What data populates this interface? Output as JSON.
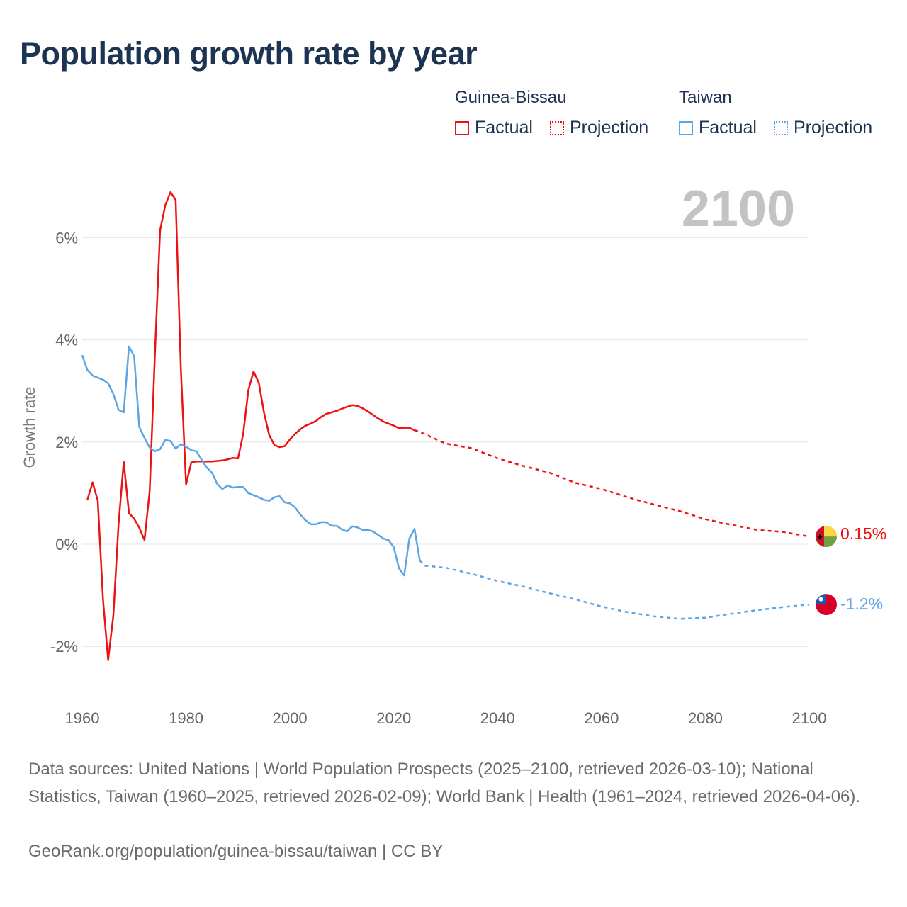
{
  "title": "Population growth rate by year",
  "legend": {
    "groups": [
      {
        "country": "Guinea-Bissau",
        "factual": "Factual",
        "projection": "Projection",
        "color": "#ee1111"
      },
      {
        "country": "Taiwan",
        "factual": "Factual",
        "projection": "Projection",
        "color": "#5ba4e6"
      }
    ]
  },
  "current_year": "2100",
  "end_labels": {
    "guinea_bissau": "0.15%",
    "taiwan": "-1.2%"
  },
  "footer": {
    "sources": "Data sources: United Nations | World Population Prospects (2025–2100, retrieved 2026-03-10); National Statistics, Taiwan (1960–2025, retrieved 2026-02-09); World Bank | Health (1961–2024, retrieved 2026-04-06).",
    "credit": "GeoRank.org/population/guinea-bissau/taiwan | CC BY"
  },
  "chart_data": {
    "type": "line",
    "title": "Population growth rate by year",
    "xlabel": "",
    "ylabel": "Growth rate",
    "xlim": [
      1960,
      2100
    ],
    "ylim": [
      -2.9,
      7.0
    ],
    "x_ticks": [
      1960,
      1980,
      2000,
      2020,
      2040,
      2060,
      2080,
      2100
    ],
    "x_tick_labels": [
      "1960",
      "1980",
      "2000",
      "2020",
      "2040",
      "2060",
      "2080",
      "2100"
    ],
    "y_ticks": [
      6,
      4,
      2,
      0,
      -2
    ],
    "y_tick_labels": [
      "6%",
      "4%",
      "2%",
      "0%",
      "-2%"
    ],
    "grid": true,
    "legend_position": "top-right",
    "series": [
      {
        "name": "Guinea-Bissau Factual",
        "color": "#ee1111",
        "style": "solid",
        "x": [
          1961,
          1962,
          1963,
          1964,
          1965,
          1966,
          1967,
          1968,
          1969,
          1970,
          1971,
          1972,
          1973,
          1974,
          1975,
          1976,
          1977,
          1978,
          1979,
          1980,
          1981,
          1982,
          1983,
          1984,
          1985,
          1986,
          1987,
          1988,
          1989,
          1990,
          1991,
          1992,
          1993,
          1994,
          1995,
          1996,
          1997,
          1998,
          1999,
          2000,
          2001,
          2002,
          2003,
          2004,
          2005,
          2006,
          2007,
          2008,
          2009,
          2010,
          2011,
          2012,
          2013,
          2014,
          2015,
          2016,
          2017,
          2018,
          2019,
          2020,
          2021,
          2022,
          2023,
          2024
        ],
        "y": [
          0.87,
          1.21,
          0.85,
          -1.07,
          -2.27,
          -1.39,
          0.39,
          1.61,
          0.61,
          0.5,
          0.32,
          0.08,
          1.05,
          3.72,
          6.14,
          6.64,
          6.89,
          6.74,
          3.44,
          1.17,
          1.6,
          1.62,
          1.62,
          1.62,
          1.62,
          1.63,
          1.64,
          1.66,
          1.69,
          1.68,
          2.16,
          3.02,
          3.38,
          3.16,
          2.58,
          2.14,
          1.94,
          1.9,
          1.92,
          2.05,
          2.16,
          2.25,
          2.32,
          2.36,
          2.41,
          2.49,
          2.55,
          2.58,
          2.61,
          2.65,
          2.69,
          2.72,
          2.71,
          2.66,
          2.6,
          2.53,
          2.46,
          2.4,
          2.36,
          2.32,
          2.27,
          2.28,
          2.28,
          2.23
        ]
      },
      {
        "name": "Guinea-Bissau Projection",
        "color": "#ee1111",
        "style": "dotted",
        "x": [
          2024,
          2025,
          2030,
          2035,
          2040,
          2045,
          2050,
          2055,
          2060,
          2065,
          2070,
          2075,
          2080,
          2085,
          2090,
          2095,
          2100
        ],
        "y": [
          2.23,
          2.2,
          1.97,
          1.88,
          1.68,
          1.53,
          1.4,
          1.2,
          1.08,
          0.92,
          0.78,
          0.65,
          0.49,
          0.38,
          0.28,
          0.24,
          0.15
        ]
      },
      {
        "name": "Taiwan Factual",
        "color": "#5ba4e6",
        "style": "solid",
        "x": [
          1960,
          1961,
          1962,
          1963,
          1964,
          1965,
          1966,
          1967,
          1968,
          1969,
          1970,
          1971,
          1972,
          1973,
          1974,
          1975,
          1976,
          1977,
          1978,
          1979,
          1980,
          1981,
          1982,
          1983,
          1984,
          1985,
          1986,
          1987,
          1988,
          1989,
          1990,
          1991,
          1992,
          1993,
          1994,
          1995,
          1996,
          1997,
          1998,
          1999,
          2000,
          2001,
          2002,
          2003,
          2004,
          2005,
          2006,
          2007,
          2008,
          2009,
          2010,
          2011,
          2012,
          2013,
          2014,
          2015,
          2016,
          2017,
          2018,
          2019,
          2020,
          2021,
          2022,
          2023,
          2024,
          2025
        ],
        "y": [
          3.7,
          3.41,
          3.3,
          3.26,
          3.22,
          3.15,
          2.94,
          2.63,
          2.58,
          3.87,
          3.68,
          2.29,
          2.08,
          1.89,
          1.82,
          1.86,
          2.04,
          2.02,
          1.87,
          1.96,
          1.91,
          1.84,
          1.82,
          1.65,
          1.5,
          1.4,
          1.18,
          1.08,
          1.15,
          1.11,
          1.12,
          1.12,
          1.0,
          0.96,
          0.92,
          0.87,
          0.85,
          0.92,
          0.94,
          0.82,
          0.8,
          0.72,
          0.58,
          0.47,
          0.39,
          0.39,
          0.43,
          0.43,
          0.36,
          0.36,
          0.29,
          0.25,
          0.35,
          0.33,
          0.28,
          0.28,
          0.25,
          0.18,
          0.11,
          0.08,
          -0.06,
          -0.47,
          -0.61,
          0.11,
          0.3,
          -0.32
        ]
      },
      {
        "name": "Taiwan Projection",
        "color": "#5ba4e6",
        "style": "dotted",
        "x": [
          2025,
          2026,
          2030,
          2035,
          2040,
          2045,
          2050,
          2055,
          2060,
          2065,
          2070,
          2075,
          2080,
          2085,
          2090,
          2095,
          2100
        ],
        "y": [
          -0.32,
          -0.42,
          -0.46,
          -0.58,
          -0.72,
          -0.83,
          -0.96,
          -1.08,
          -1.22,
          -1.33,
          -1.41,
          -1.46,
          -1.44,
          -1.36,
          -1.29,
          -1.23,
          -1.18
        ]
      }
    ]
  }
}
